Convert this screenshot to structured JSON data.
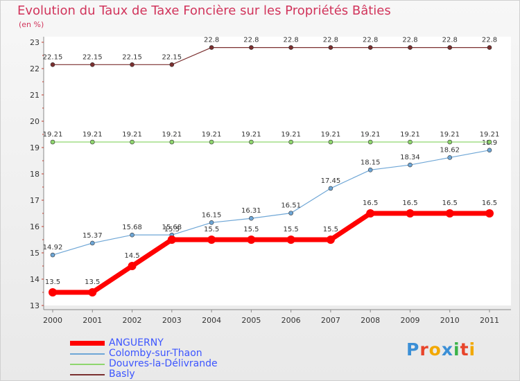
{
  "header": {
    "title": "Evolution du Taux de Taxe Foncière sur les Propriétés Bâties",
    "subtitle": "(en %)"
  },
  "logo": {
    "letters": [
      "P",
      "r",
      "o",
      "x",
      "i",
      "t",
      "i"
    ],
    "colors": [
      "#3b8fd6",
      "#e8442a",
      "#f2a800",
      "#3b8fd6",
      "#3bb34a",
      "#e8442a",
      "#f2a800"
    ]
  },
  "chart_data": {
    "type": "line",
    "title": "Evolution du Taux de Taxe Foncière sur les Propriétés Bâties",
    "ylabel": "(en %)",
    "categories": [
      "2000",
      "2001",
      "2002",
      "2003",
      "2004",
      "2005",
      "2006",
      "2007",
      "2008",
      "2009",
      "2010",
      "2011"
    ],
    "ylim": [
      13,
      23
    ],
    "yticks": [
      "13",
      "14",
      "15",
      "16",
      "17",
      "18",
      "19",
      "20",
      "21",
      "22",
      "23"
    ],
    "grid": false,
    "legend_position": "bottom-left",
    "series": [
      {
        "name": "ANGUERNY",
        "color": "#ff0000",
        "thick": true,
        "values": [
          13.5,
          13.5,
          14.5,
          15.5,
          15.5,
          15.5,
          15.5,
          15.5,
          16.5,
          16.5,
          16.5,
          16.5
        ],
        "labels": [
          "13.5",
          "13.5",
          "14.5",
          "15.5",
          "15.5",
          "15.5",
          "15.5",
          "15.5",
          "16.5",
          "16.5",
          "16.5",
          "16.5"
        ]
      },
      {
        "name": "Colomby-sur-Thaon",
        "color": "#6ea6d6",
        "thick": false,
        "values": [
          14.92,
          15.37,
          15.68,
          15.68,
          16.15,
          16.31,
          16.51,
          17.45,
          18.15,
          18.34,
          18.62,
          18.9
        ],
        "labels": [
          "14.92",
          "15.37",
          "15.68",
          "15.68",
          "16.15",
          "16.31",
          "16.51",
          "17.45",
          "18.15",
          "18.34",
          "18.62",
          "18.9"
        ]
      },
      {
        "name": "Douvres-la-Délivrande",
        "color": "#8fd66e",
        "thick": false,
        "values": [
          19.21,
          19.21,
          19.21,
          19.21,
          19.21,
          19.21,
          19.21,
          19.21,
          19.21,
          19.21,
          19.21,
          19.21
        ],
        "labels": [
          "19.21",
          "19.21",
          "19.21",
          "19.21",
          "19.21",
          "19.21",
          "19.21",
          "19.21",
          "19.21",
          "19.21",
          "19.21",
          "19.21"
        ]
      },
      {
        "name": "Basly",
        "color": "#7a2f2f",
        "thick": false,
        "values": [
          22.15,
          22.15,
          22.15,
          22.15,
          22.8,
          22.8,
          22.8,
          22.8,
          22.8,
          22.8,
          22.8,
          22.8
        ],
        "labels": [
          "22.15",
          "22.15",
          "22.15",
          "22.15",
          "22.8",
          "22.8",
          "22.8",
          "22.8",
          "22.8",
          "22.8",
          "22.8",
          "22.8"
        ]
      }
    ]
  }
}
